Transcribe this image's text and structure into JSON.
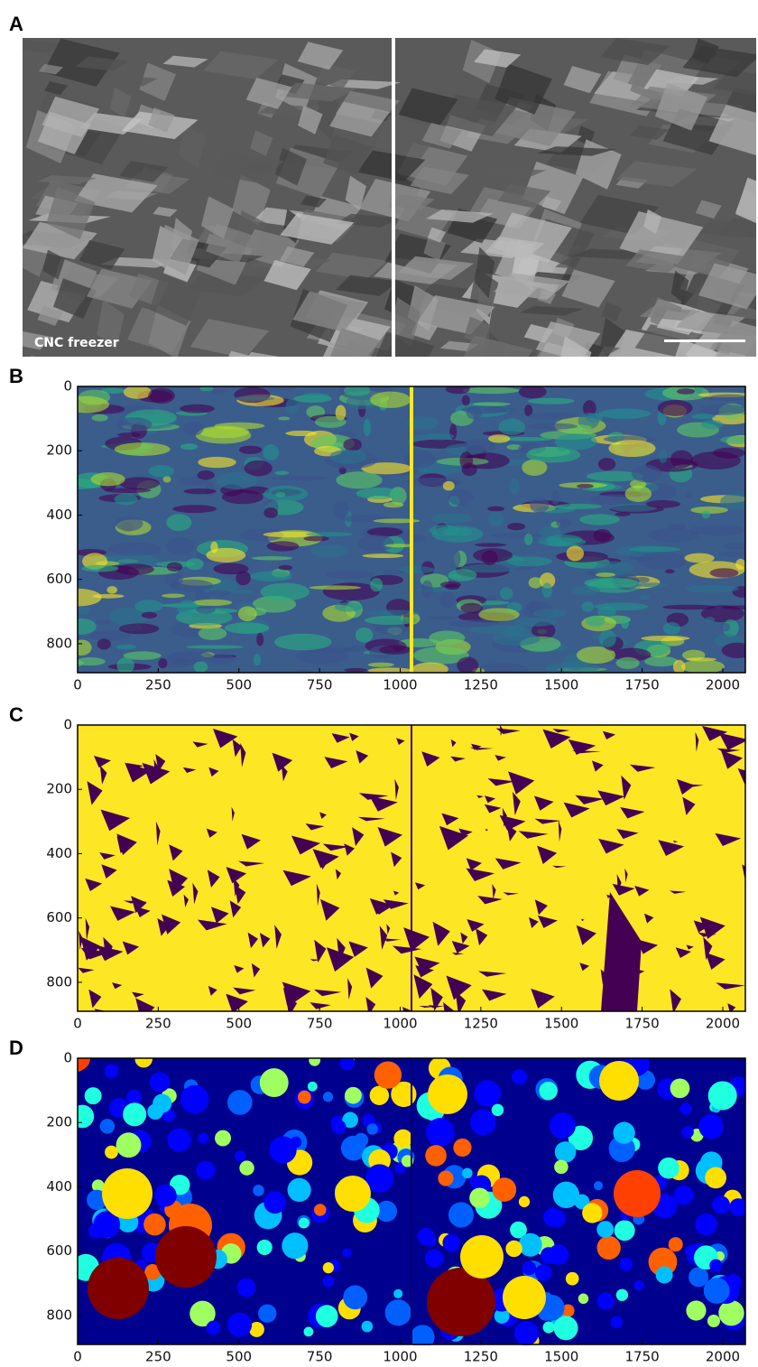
{
  "panels": [
    {
      "label": "A",
      "caption": "CNC freezer"
    },
    {
      "label": "B",
      "xlim": [
        0,
        2070
      ],
      "ylim": [
        0,
        890
      ],
      "xticks": [
        0,
        250,
        500,
        750,
        1000,
        1250,
        1500,
        1750,
        2000
      ],
      "yticks": [
        0,
        200,
        400,
        600,
        800
      ]
    },
    {
      "label": "C",
      "xlim": [
        0,
        2070
      ],
      "ylim": [
        0,
        890
      ],
      "xticks": [
        0,
        250,
        500,
        750,
        1000,
        1250,
        1500,
        1750,
        2000
      ],
      "yticks": [
        0,
        200,
        400,
        600,
        800
      ]
    },
    {
      "label": "D",
      "xlim": [
        0,
        2070
      ],
      "ylim": [
        0,
        890
      ],
      "xticks": [
        0,
        250,
        500,
        750,
        1000,
        1250,
        1500,
        1750,
        2000
      ],
      "yticks": [
        0,
        200,
        400,
        600,
        800
      ]
    }
  ]
}
